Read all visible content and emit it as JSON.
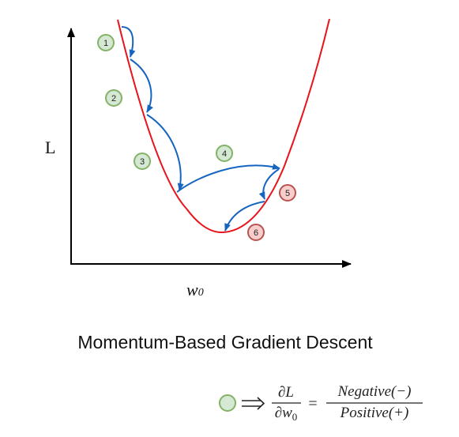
{
  "diagram": {
    "y_axis_label": "L",
    "x_axis_label": "w",
    "x_axis_label_sub": "0",
    "caption": "Momentum-Based Gradient Descent",
    "steps": [
      {
        "label": "1",
        "kind": "negative-slope"
      },
      {
        "label": "2",
        "kind": "negative-slope"
      },
      {
        "label": "3",
        "kind": "negative-slope"
      },
      {
        "label": "4",
        "kind": "negative-slope"
      },
      {
        "label": "5",
        "kind": "positive-slope"
      },
      {
        "label": "6",
        "kind": "positive-slope"
      }
    ],
    "legend": {
      "partial": "∂",
      "numerator_var": "L",
      "denominator_var": "w",
      "denominator_sub": "0",
      "equals": "=",
      "fraction_numerator": "Negative(−)",
      "fraction_denominator": "Positive(+)"
    },
    "colors": {
      "curve": "#e8141c",
      "arrow": "#1565c0",
      "axis": "#000000",
      "negative_fill": "#d5e8d4",
      "negative_stroke": "#82b366",
      "positive_fill": "#f8cecc",
      "positive_stroke": "#b85450"
    }
  }
}
